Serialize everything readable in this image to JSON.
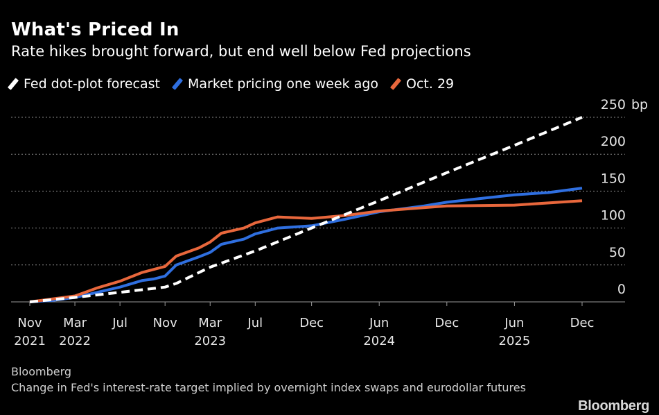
{
  "title": "What's Priced In",
  "subtitle": "Rate hikes brought forward, but end well below Fed projections",
  "legend": [
    {
      "label": "Fed dot-plot forecast",
      "color": "#ffffff"
    },
    {
      "label": "Market pricing one week ago",
      "color": "#2f6fe0"
    },
    {
      "label": "Oct. 29",
      "color": "#e8673c"
    }
  ],
  "footer": {
    "source": "Bloomberg",
    "note": "Change in Fed's interest-rate target implied by overnight index swaps and eurodollar futures",
    "logo": "Bloomberg"
  },
  "chart_data": {
    "type": "line",
    "xlabel": "",
    "ylabel": "",
    "ylim": [
      0,
      250
    ],
    "yunit": "bp",
    "yticks": [
      0,
      50,
      100,
      150,
      200,
      250
    ],
    "xlim": [
      "2021-11",
      "2025-12"
    ],
    "grid": true,
    "legend_position": "top-left",
    "xticks": [
      {
        "label": "Nov",
        "year": "2021",
        "date": "2021-11"
      },
      {
        "label": "Mar",
        "year": "2022",
        "date": "2022-03"
      },
      {
        "label": "Jul",
        "year": "",
        "date": "2022-07"
      },
      {
        "label": "Nov",
        "year": "",
        "date": "2022-11"
      },
      {
        "label": "Mar",
        "year": "2023",
        "date": "2023-03"
      },
      {
        "label": "Jul",
        "year": "",
        "date": "2023-07"
      },
      {
        "label": "Dec",
        "year": "",
        "date": "2023-12"
      },
      {
        "label": "Jun",
        "year": "2024",
        "date": "2024-06"
      },
      {
        "label": "Dec",
        "year": "",
        "date": "2024-12"
      },
      {
        "label": "Jun",
        "year": "2025",
        "date": "2025-06"
      },
      {
        "label": "Dec",
        "year": "",
        "date": "2025-12"
      }
    ],
    "series": [
      {
        "name": "Fed dot-plot forecast",
        "color": "#ffffff",
        "dashed": true,
        "points": [
          [
            "2021-11",
            0
          ],
          [
            "2022-03",
            6
          ],
          [
            "2022-07",
            13
          ],
          [
            "2022-11",
            20
          ],
          [
            "2022-12",
            25
          ],
          [
            "2023-03",
            47
          ],
          [
            "2023-07",
            69
          ],
          [
            "2023-12",
            100
          ],
          [
            "2024-06",
            137
          ],
          [
            "2024-12",
            175
          ],
          [
            "2025-06",
            212
          ],
          [
            "2025-12",
            250
          ]
        ]
      },
      {
        "name": "Market pricing one week ago",
        "color": "#2f6fe0",
        "dashed": false,
        "points": [
          [
            "2021-11",
            0
          ],
          [
            "2022-01",
            2
          ],
          [
            "2022-03",
            6
          ],
          [
            "2022-05",
            13
          ],
          [
            "2022-07",
            20
          ],
          [
            "2022-09",
            29
          ],
          [
            "2022-10",
            31
          ],
          [
            "2022-11",
            35
          ],
          [
            "2022-12",
            50
          ],
          [
            "2023-02",
            61
          ],
          [
            "2023-03",
            67
          ],
          [
            "2023-04",
            78
          ],
          [
            "2023-06",
            85
          ],
          [
            "2023-07",
            92
          ],
          [
            "2023-09",
            100
          ],
          [
            "2023-12",
            103
          ],
          [
            "2024-03",
            112
          ],
          [
            "2024-06",
            122
          ],
          [
            "2024-10",
            130
          ],
          [
            "2024-12",
            135
          ],
          [
            "2025-03",
            140
          ],
          [
            "2025-06",
            145
          ],
          [
            "2025-09",
            148
          ],
          [
            "2025-12",
            154
          ]
        ]
      },
      {
        "name": "Oct. 29",
        "color": "#e8673c",
        "dashed": false,
        "points": [
          [
            "2021-11",
            0
          ],
          [
            "2022-03",
            8
          ],
          [
            "2022-05",
            19
          ],
          [
            "2022-07",
            28
          ],
          [
            "2022-09",
            40
          ],
          [
            "2022-11",
            48
          ],
          [
            "2022-12",
            62
          ],
          [
            "2023-02",
            73
          ],
          [
            "2023-03",
            81
          ],
          [
            "2023-04",
            93
          ],
          [
            "2023-06",
            100
          ],
          [
            "2023-07",
            107
          ],
          [
            "2023-09",
            115
          ],
          [
            "2023-12",
            113
          ],
          [
            "2024-03",
            117
          ],
          [
            "2024-06",
            123
          ],
          [
            "2024-12",
            130
          ],
          [
            "2025-06",
            131
          ],
          [
            "2025-12",
            137
          ]
        ]
      }
    ]
  }
}
